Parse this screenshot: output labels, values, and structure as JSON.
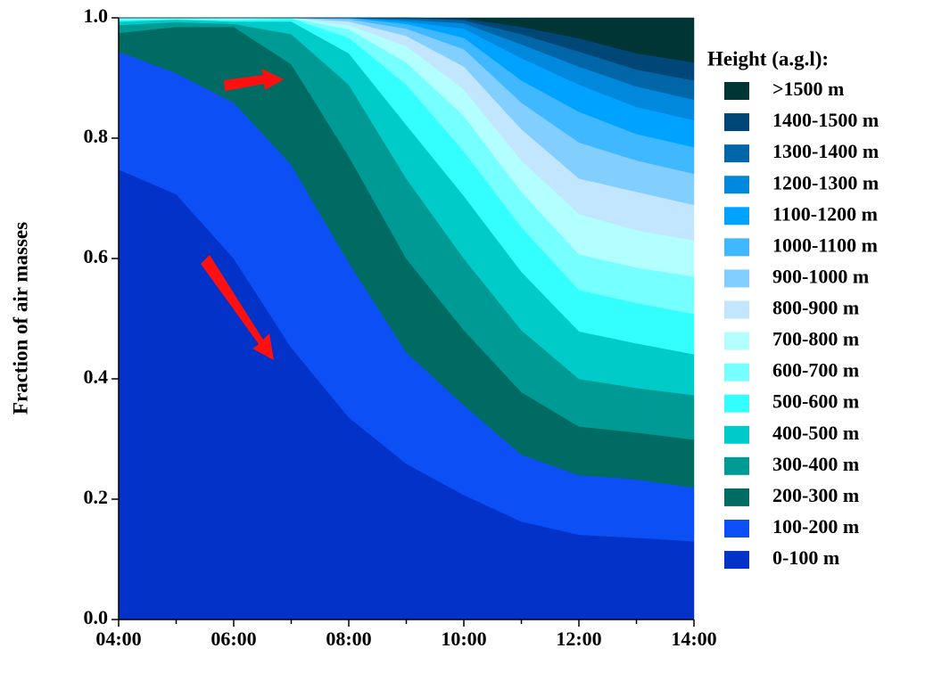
{
  "chart_data": {
    "type": "stacked_area",
    "y_label": "Fraction of air masses",
    "legend_title": "Height (a.g.l):",
    "categories": [
      "04:00",
      null,
      "06:00",
      null,
      "08:00",
      null,
      "10:00",
      null,
      "12:00",
      null,
      "14:00"
    ],
    "ylim": [
      0,
      1
    ],
    "yticks": [
      {
        "value": 0,
        "label": "0.0"
      },
      0.2,
      0.4,
      0.6,
      0.8,
      {
        "value": 1,
        "label": "1.0"
      }
    ],
    "series": [
      {
        "name": "0-100 m",
        "color": "#0232c8",
        "values": [
          0.748,
          0.707,
          0.6,
          0.452,
          0.336,
          0.259,
          0.207,
          0.163,
          0.141,
          0.136,
          0.13
        ]
      },
      {
        "name": "100-200 m",
        "color": "#0c4ff5",
        "values": [
          0.196,
          0.201,
          0.259,
          0.304,
          0.257,
          0.185,
          0.149,
          0.111,
          0.099,
          0.097,
          0.089
        ]
      },
      {
        "name": "200-300 m",
        "color": "#006b63",
        "values": [
          0.031,
          0.077,
          0.126,
          0.167,
          0.177,
          0.156,
          0.125,
          0.104,
          0.081,
          0.078,
          0.08
        ]
      },
      {
        "name": "300-400 m",
        "color": "#009a95",
        "values": [
          0.013,
          0.008,
          0.005,
          0.05,
          0.119,
          0.133,
          0.119,
          0.103,
          0.079,
          0.074,
          0.074
        ]
      },
      {
        "name": "400-500 m",
        "color": "#00cbc8",
        "values": [
          0.006,
          0.004,
          0.004,
          0.021,
          0.052,
          0.089,
          0.104,
          0.097,
          0.079,
          0.074,
          0.068
        ]
      },
      {
        "name": "500-600 m",
        "color": "#33ffff",
        "values": [
          0.003,
          0.001,
          0.003,
          0.005,
          0.026,
          0.067,
          0.074,
          0.074,
          0.069,
          0.067,
          0.067
        ]
      },
      {
        "name": "600-700 m",
        "color": "#75ffff",
        "values": [
          0.002,
          0.001,
          0.001,
          0.001,
          0.014,
          0.037,
          0.059,
          0.059,
          0.059,
          0.059,
          0.062
        ]
      },
      {
        "name": "700-800 m",
        "color": "#b3ffff",
        "values": [
          0.001,
          0.001,
          0.002,
          0,
          0.007,
          0.027,
          0.044,
          0.052,
          0.067,
          0.062,
          0.06
        ]
      },
      {
        "name": "800-900 m",
        "color": "#c3e6ff",
        "values": [
          0,
          0,
          0,
          0,
          0.006,
          0.017,
          0.038,
          0.052,
          0.059,
          0.064,
          0.059
        ]
      },
      {
        "name": "900-1000 m",
        "color": "#82cfff",
        "values": [
          0,
          0,
          0,
          0,
          0.004,
          0.012,
          0.029,
          0.044,
          0.06,
          0.052,
          0.052
        ]
      },
      {
        "name": "1000-1100 m",
        "color": "#40b8ff",
        "values": [
          0,
          0,
          0,
          0,
          0.002,
          0.008,
          0.019,
          0.037,
          0.051,
          0.044,
          0.044
        ]
      },
      {
        "name": "1100-1200 m",
        "color": "#00a2ff",
        "values": [
          0,
          0,
          0,
          0,
          0,
          0.004,
          0.015,
          0.037,
          0.045,
          0.045,
          0.045
        ]
      },
      {
        "name": "1200-1300 m",
        "color": "#0088dd",
        "values": [
          0,
          0,
          0,
          0,
          0,
          0.003,
          0.009,
          0.023,
          0.03,
          0.034,
          0.034
        ]
      },
      {
        "name": "1300-1400 m",
        "color": "#0066a8",
        "values": [
          0,
          0,
          0,
          0,
          0,
          0.003,
          0.005,
          0.017,
          0.025,
          0.028,
          0.032
        ]
      },
      {
        "name": "1400-1500 m",
        "color": "#004676",
        "values": [
          0,
          0,
          0,
          0,
          0,
          0,
          0.003,
          0.012,
          0.022,
          0.027,
          0.03
        ]
      },
      {
        "name": ">1500 m",
        "color": "#003535",
        "values": [
          0,
          0,
          0,
          0,
          0,
          0,
          0.001,
          0.015,
          0.034,
          0.059,
          0.074
        ]
      }
    ]
  }
}
